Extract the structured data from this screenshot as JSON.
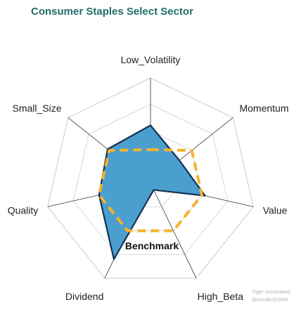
{
  "title": "Consumer Staples Select Sector",
  "watermark": {
    "line1": "Tiger Generated",
    "line2": "@nerdbull1669"
  },
  "chart_data": {
    "type": "radar",
    "title": "Consumer Staples Select Sector",
    "axes": [
      "Low_Volatility",
      "Momentum",
      "Value",
      "High_Beta",
      "Dividend",
      "Quality",
      "Small_Size"
    ],
    "rmax": 1.0,
    "rings": 4,
    "grid": true,
    "series": [
      {
        "name": "",
        "values": [
          0.55,
          0.35,
          0.53,
          0.07,
          0.8,
          0.5,
          0.52
        ],
        "fill": "#4a9fcf",
        "stroke": "#16304f"
      },
      {
        "name": "Benchmark",
        "values": [
          0.32,
          0.5,
          0.5,
          0.5,
          0.5,
          0.5,
          0.5
        ],
        "fill": "none",
        "stroke": "#f4b22b",
        "dashed": true
      }
    ],
    "annotations": [
      "Benchmark"
    ]
  }
}
